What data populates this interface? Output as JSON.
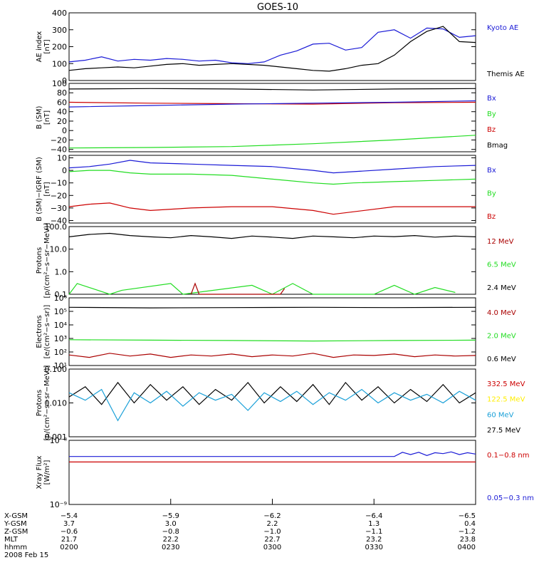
{
  "title": "GOES-10",
  "colors": {
    "black": "#000000",
    "blue": "#1a1ad6",
    "green": "#22dd22",
    "red": "#cc0000",
    "darkred": "#aa0000",
    "cyan": "#1aa0d8",
    "yellow": "#ffee00"
  },
  "chart_data": [
    {
      "id": "ae",
      "type": "line",
      "ylabel": [
        "AE index",
        "[nT]"
      ],
      "ylim": [
        0,
        400
      ],
      "yticks": [
        "0",
        "100",
        "200",
        "300",
        "400"
      ],
      "yticks_values": [
        0,
        100,
        200,
        300,
        400
      ],
      "legend": [
        {
          "name": "Kyoto AE",
          "color": "blue"
        },
        {
          "name": "Themis AE",
          "color": "black"
        }
      ],
      "series": [
        {
          "name": "Kyoto AE",
          "color": "blue",
          "x": [
            0,
            0.04,
            0.08,
            0.12,
            0.16,
            0.2,
            0.24,
            0.28,
            0.32,
            0.36,
            0.4,
            0.44,
            0.48,
            0.52,
            0.56,
            0.6,
            0.64,
            0.68,
            0.72,
            0.76,
            0.8,
            0.84,
            0.88,
            0.92,
            0.96,
            1.0
          ],
          "values": [
            110,
            120,
            140,
            115,
            125,
            120,
            130,
            125,
            115,
            120,
            105,
            100,
            110,
            150,
            175,
            215,
            220,
            180,
            195,
            285,
            300,
            250,
            310,
            305,
            255,
            265
          ]
        },
        {
          "name": "Themis AE",
          "color": "black",
          "x": [
            0,
            0.04,
            0.08,
            0.12,
            0.16,
            0.2,
            0.24,
            0.28,
            0.32,
            0.36,
            0.4,
            0.44,
            0.48,
            0.52,
            0.56,
            0.6,
            0.64,
            0.68,
            0.72,
            0.76,
            0.8,
            0.84,
            0.88,
            0.92,
            0.96,
            1.0
          ],
          "values": [
            60,
            70,
            75,
            80,
            75,
            85,
            95,
            100,
            90,
            95,
            100,
            95,
            90,
            80,
            70,
            60,
            55,
            70,
            90,
            100,
            150,
            230,
            290,
            320,
            230,
            225
          ]
        }
      ]
    },
    {
      "id": "bsm",
      "type": "line",
      "ylabel": [
        "B (SM)",
        "[nT]"
      ],
      "ylim": [
        -45,
        100
      ],
      "yticks": [
        "100",
        "80",
        "60",
        "40",
        "20",
        "0",
        "−20",
        "−40"
      ],
      "yticks_values": [
        100,
        80,
        60,
        40,
        20,
        0,
        -20,
        -40
      ],
      "legend": [
        {
          "name": "Bx",
          "color": "blue"
        },
        {
          "name": "By",
          "color": "green"
        },
        {
          "name": "Bz",
          "color": "red"
        },
        {
          "name": "Bmag",
          "color": "black"
        }
      ],
      "series": [
        {
          "name": "Bmag",
          "color": "black",
          "x": [
            0,
            0.2,
            0.4,
            0.6,
            0.8,
            1.0
          ],
          "values": [
            88,
            89,
            88,
            86,
            88,
            89
          ]
        },
        {
          "name": "Bz",
          "color": "red",
          "x": [
            0,
            0.2,
            0.4,
            0.6,
            0.8,
            1.0
          ],
          "values": [
            60,
            58,
            57,
            56,
            59,
            60
          ]
        },
        {
          "name": "Bx",
          "color": "blue",
          "x": [
            0,
            0.2,
            0.4,
            0.6,
            0.8,
            1.0
          ],
          "values": [
            50,
            53,
            56,
            58,
            60,
            63
          ]
        },
        {
          "name": "By",
          "color": "green",
          "x": [
            0,
            0.2,
            0.4,
            0.6,
            0.8,
            1.0
          ],
          "values": [
            -37,
            -36,
            -34,
            -28,
            -20,
            -10
          ]
        }
      ]
    },
    {
      "id": "bigrf",
      "type": "line",
      "ylabel": [
        "B (SM)−IGRF (SM)",
        "[nT]"
      ],
      "ylim": [
        -42,
        12
      ],
      "yticks": [
        "10",
        "0",
        "−10",
        "−20",
        "−30",
        "−40"
      ],
      "yticks_values": [
        10,
        0,
        -10,
        -20,
        -30,
        -40
      ],
      "legend": [
        {
          "name": "Bx",
          "color": "blue"
        },
        {
          "name": "By",
          "color": "green"
        },
        {
          "name": "Bz",
          "color": "red"
        }
      ],
      "series": [
        {
          "name": "Bx",
          "color": "blue",
          "x": [
            0,
            0.05,
            0.1,
            0.15,
            0.2,
            0.3,
            0.4,
            0.5,
            0.6,
            0.65,
            0.7,
            0.8,
            0.9,
            1.0
          ],
          "values": [
            2,
            3,
            5,
            8,
            6,
            5,
            4,
            3,
            0,
            -2,
            -1,
            1,
            3,
            4
          ]
        },
        {
          "name": "By",
          "color": "green",
          "x": [
            0,
            0.05,
            0.1,
            0.15,
            0.2,
            0.3,
            0.4,
            0.5,
            0.6,
            0.65,
            0.7,
            0.8,
            0.9,
            1.0
          ],
          "values": [
            -1,
            0,
            0,
            -2,
            -3,
            -3,
            -4,
            -7,
            -10,
            -11,
            -10,
            -9,
            -8,
            -7
          ]
        },
        {
          "name": "Bz",
          "color": "red",
          "x": [
            0,
            0.05,
            0.1,
            0.15,
            0.2,
            0.3,
            0.4,
            0.5,
            0.6,
            0.65,
            0.7,
            0.8,
            0.9,
            1.0
          ],
          "values": [
            -29,
            -27,
            -26,
            -30,
            -32,
            -30,
            -29,
            -29,
            -32,
            -35,
            -33,
            -29,
            -29,
            -29
          ]
        }
      ]
    },
    {
      "id": "protons1",
      "type": "line",
      "scale": "log",
      "ylabel": [
        "Protons",
        "[p/(cm²−s−sr−MeV)]"
      ],
      "ylim": [
        0.1,
        100
      ],
      "yticks": [
        "100.0",
        "10.0",
        "1.0",
        "0.1"
      ],
      "yticks_values": [
        100,
        10,
        1,
        0.1
      ],
      "legend": [
        {
          "name": "12 MeV",
          "color": "darkred"
        },
        {
          "name": "6.5 MeV",
          "color": "green"
        },
        {
          "name": "2.4 MeV",
          "color": "black"
        }
      ],
      "series": [
        {
          "name": "2.4 MeV",
          "color": "black",
          "x": [
            0,
            0.05,
            0.1,
            0.15,
            0.2,
            0.25,
            0.3,
            0.35,
            0.4,
            0.45,
            0.5,
            0.55,
            0.6,
            0.65,
            0.7,
            0.75,
            0.8,
            0.85,
            0.9,
            0.95,
            1.0
          ],
          "values": [
            35,
            45,
            50,
            40,
            35,
            32,
            40,
            35,
            30,
            38,
            34,
            30,
            38,
            35,
            32,
            38,
            36,
            40,
            34,
            38,
            35
          ]
        },
        {
          "name": "6.5 MeV",
          "color": "green",
          "x": [
            0,
            0.02,
            0.1,
            0.13,
            0.25,
            0.28,
            0.45,
            0.5,
            0.55,
            0.6,
            0.75,
            0.8,
            0.85,
            0.9,
            0.95
          ],
          "values": [
            0.1,
            0.3,
            0.1,
            0.15,
            0.3,
            0.1,
            0.25,
            0.1,
            0.3,
            0.1,
            0.1,
            0.25,
            0.1,
            0.2,
            0.12
          ]
        },
        {
          "name": "12 MeV",
          "color": "darkred",
          "x": [
            0.3,
            0.31,
            0.32,
            0.52,
            0.53
          ],
          "values": [
            0.1,
            0.3,
            0.1,
            0.1,
            0.18
          ]
        }
      ]
    },
    {
      "id": "electrons",
      "type": "line",
      "scale": "log",
      "ylabel": [
        "Electrons",
        "[e/(cm²−s−sr)]"
      ],
      "ylim": [
        10,
        1000000
      ],
      "yticks": [
        "10⁶",
        "10⁵",
        "10⁴",
        "10³",
        "10²",
        "10¹"
      ],
      "yticks_values": [
        1000000,
        100000,
        10000,
        1000,
        100,
        10
      ],
      "legend": [
        {
          "name": "4.0 MeV",
          "color": "darkred"
        },
        {
          "name": "2.0 MeV",
          "color": "green"
        },
        {
          "name": "0.6 MeV",
          "color": "black"
        }
      ],
      "series": [
        {
          "name": "0.6 MeV",
          "color": "black",
          "x": [
            0,
            0.2,
            0.4,
            0.6,
            0.8,
            1.0
          ],
          "values": [
            200000,
            180000,
            190000,
            200000,
            190000,
            200000
          ]
        },
        {
          "name": "2.0 MeV",
          "color": "green",
          "x": [
            0,
            0.2,
            0.4,
            0.6,
            0.8,
            1.0
          ],
          "values": [
            800,
            750,
            700,
            650,
            700,
            750
          ]
        },
        {
          "name": "4.0 MeV",
          "color": "darkred",
          "x": [
            0,
            0.05,
            0.1,
            0.15,
            0.2,
            0.25,
            0.3,
            0.35,
            0.4,
            0.45,
            0.5,
            0.55,
            0.6,
            0.65,
            0.7,
            0.75,
            0.8,
            0.85,
            0.9,
            0.95,
            1.0
          ],
          "values": [
            60,
            40,
            80,
            50,
            70,
            40,
            60,
            50,
            70,
            45,
            60,
            50,
            80,
            40,
            60,
            55,
            70,
            45,
            60,
            50,
            55
          ]
        }
      ]
    },
    {
      "id": "protons2",
      "type": "line",
      "scale": "log",
      "ylabel": [
        "Protons",
        "[p/(cm²−s−sr−MeV)]"
      ],
      "ylim": [
        0.001,
        0.1
      ],
      "yticks": [
        "0.100",
        "0.010",
        "0.001"
      ],
      "yticks_values": [
        0.1,
        0.01,
        0.001
      ],
      "legend": [
        {
          "name": "332.5 MeV",
          "color": "red"
        },
        {
          "name": "122.5 MeV",
          "color": "yellow"
        },
        {
          "name": "60 MeV",
          "color": "cyan"
        },
        {
          "name": "27.5 MeV",
          "color": "black"
        }
      ],
      "series": [
        {
          "name": "27.5 MeV",
          "color": "black",
          "x": [
            0,
            0.04,
            0.08,
            0.12,
            0.16,
            0.2,
            0.24,
            0.28,
            0.32,
            0.36,
            0.4,
            0.44,
            0.48,
            0.52,
            0.56,
            0.6,
            0.64,
            0.68,
            0.72,
            0.76,
            0.8,
            0.84,
            0.88,
            0.92,
            0.96,
            1.0
          ],
          "values": [
            0.015,
            0.03,
            0.009,
            0.04,
            0.01,
            0.035,
            0.012,
            0.03,
            0.009,
            0.025,
            0.012,
            0.04,
            0.01,
            0.03,
            0.011,
            0.035,
            0.009,
            0.04,
            0.012,
            0.03,
            0.01,
            0.025,
            0.011,
            0.035,
            0.01,
            0.02
          ]
        },
        {
          "name": "60 MeV",
          "color": "cyan",
          "x": [
            0,
            0.04,
            0.08,
            0.12,
            0.16,
            0.2,
            0.24,
            0.28,
            0.32,
            0.36,
            0.4,
            0.44,
            0.48,
            0.52,
            0.56,
            0.6,
            0.64,
            0.68,
            0.72,
            0.76,
            0.8,
            0.84,
            0.88,
            0.92,
            0.96,
            1.0
          ],
          "values": [
            0.02,
            0.012,
            0.025,
            0.003,
            0.02,
            0.01,
            0.022,
            0.008,
            0.02,
            0.012,
            0.018,
            0.006,
            0.02,
            0.011,
            0.022,
            0.009,
            0.02,
            0.012,
            0.025,
            0.01,
            0.02,
            0.012,
            0.018,
            0.01,
            0.022,
            0.012
          ]
        }
      ]
    },
    {
      "id": "xray",
      "type": "line",
      "scale": "log",
      "ylabel": [
        "Xray Flux",
        "[W/m²]"
      ],
      "ylim": [
        1e-09,
        1e-08
      ],
      "yticks": [
        "10⁻⁸",
        "10⁻⁹"
      ],
      "yticks_values": [
        1e-08,
        1e-09
      ],
      "legend": [
        {
          "name": "0.1−0.8 nm",
          "color": "red"
        },
        {
          "name": "0.05−0.3 nm",
          "color": "blue"
        }
      ],
      "series": [
        {
          "name": "0.05−0.3 nm",
          "color": "blue",
          "x": [
            0,
            0.2,
            0.4,
            0.6,
            0.8,
            0.82,
            0.84,
            0.86,
            0.88,
            0.9,
            0.92,
            0.94,
            0.96,
            0.98,
            1.0
          ],
          "values": [
            5.6e-09,
            5.6e-09,
            5.6e-09,
            5.6e-09,
            5.6e-09,
            6.5e-09,
            6e-09,
            6.5e-09,
            5.8e-09,
            6.4e-09,
            6.2e-09,
            6.6e-09,
            6e-09,
            6.4e-09,
            6.1e-09
          ]
        },
        {
          "name": "0.1−0.8 nm",
          "color": "red",
          "x": [
            0,
            1.0
          ],
          "values": [
            4.6e-09,
            4.6e-09
          ]
        }
      ]
    }
  ],
  "xaxis": {
    "rows": [
      {
        "label": "X-GSM",
        "values": [
          "−5.4",
          "−5.9",
          "−6.2",
          "−6.4",
          "−6.5"
        ]
      },
      {
        "label": "Y-GSM",
        "values": [
          "3.7",
          "3.0",
          "2.2",
          "1.3",
          "0.4"
        ]
      },
      {
        "label": "Z-GSM",
        "values": [
          "−0.6",
          "−0.8",
          "−1.0",
          "−1.1",
          "−1.2"
        ]
      },
      {
        "label": "MLT",
        "values": [
          "21.7",
          "22.2",
          "22.7",
          "23.2",
          "23.8"
        ]
      },
      {
        "label": "hhmm",
        "values": [
          "0200",
          "0230",
          "0300",
          "0330",
          "0400"
        ]
      }
    ],
    "date": "2008 Feb 15"
  }
}
